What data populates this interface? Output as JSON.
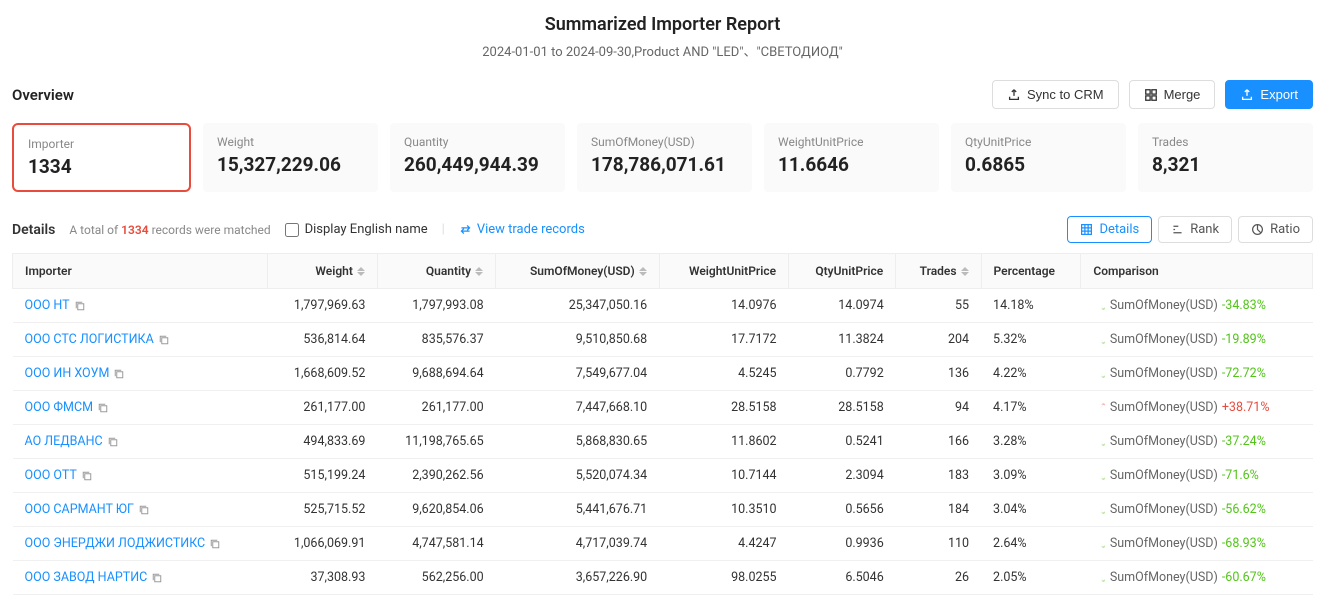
{
  "title": "Summarized Importer Report",
  "subtitle": "2024-01-01 to 2024-09-30,Product AND \"LED\"、\"СВЕТОДИОД\"",
  "overview": {
    "title": "Overview",
    "actions": {
      "sync": "Sync to CRM",
      "merge": "Merge",
      "export": "Export"
    },
    "cards": [
      {
        "label": "Importer",
        "value": "1334",
        "highlighted": true
      },
      {
        "label": "Weight",
        "value": "15,327,229.06"
      },
      {
        "label": "Quantity",
        "value": "260,449,944.39"
      },
      {
        "label": "SumOfMoney(USD)",
        "value": "178,786,071.61"
      },
      {
        "label": "WeightUnitPrice",
        "value": "11.6646"
      },
      {
        "label": "QtyUnitPrice",
        "value": "0.6865"
      },
      {
        "label": "Trades",
        "value": "8,321"
      }
    ]
  },
  "details": {
    "title": "Details",
    "match_prefix": "A total of",
    "match_count": "1334",
    "match_suffix": "records were matched",
    "checkbox_label": "Display English name",
    "view_records": "View trade records",
    "tabs": {
      "details": "Details",
      "rank": "Rank",
      "ratio": "Ratio"
    },
    "columns": [
      "Importer",
      "Weight",
      "Quantity",
      "SumOfMoney(USD)",
      "WeightUnitPrice",
      "QtyUnitPrice",
      "Trades",
      "Percentage",
      "Comparison"
    ],
    "comp_label": "SumOfMoney(USD)",
    "rows": [
      {
        "importer": "ООО НТ",
        "weight": "1,797,969.63",
        "quantity": "1,797,993.08",
        "sum": "25,347,050.16",
        "wup": "14.0976",
        "qup": "14.0974",
        "trades": "55",
        "pct": "14.18%",
        "comp": "-34.83%",
        "dir": "down"
      },
      {
        "importer": "ООО СТС ЛОГИСТИКА",
        "weight": "536,814.64",
        "quantity": "835,576.37",
        "sum": "9,510,850.68",
        "wup": "17.7172",
        "qup": "11.3824",
        "trades": "204",
        "pct": "5.32%",
        "comp": "-19.89%",
        "dir": "down"
      },
      {
        "importer": "ООО ИН ХОУМ",
        "weight": "1,668,609.52",
        "quantity": "9,688,694.64",
        "sum": "7,549,677.04",
        "wup": "4.5245",
        "qup": "0.7792",
        "trades": "136",
        "pct": "4.22%",
        "comp": "-72.72%",
        "dir": "down"
      },
      {
        "importer": "ООО ФМСМ",
        "weight": "261,177.00",
        "quantity": "261,177.00",
        "sum": "7,447,668.10",
        "wup": "28.5158",
        "qup": "28.5158",
        "trades": "94",
        "pct": "4.17%",
        "comp": "+38.71%",
        "dir": "up"
      },
      {
        "importer": "АО ЛЕДВАНС",
        "weight": "494,833.69",
        "quantity": "11,198,765.65",
        "sum": "5,868,830.65",
        "wup": "11.8602",
        "qup": "0.5241",
        "trades": "166",
        "pct": "3.28%",
        "comp": "-37.24%",
        "dir": "down"
      },
      {
        "importer": "ООО ОТТ",
        "weight": "515,199.24",
        "quantity": "2,390,262.56",
        "sum": "5,520,074.34",
        "wup": "10.7144",
        "qup": "2.3094",
        "trades": "183",
        "pct": "3.09%",
        "comp": "-71.6%",
        "dir": "down"
      },
      {
        "importer": "ООО САРМАНТ ЮГ",
        "weight": "525,715.52",
        "quantity": "9,620,854.06",
        "sum": "5,441,676.71",
        "wup": "10.3510",
        "qup": "0.5656",
        "trades": "184",
        "pct": "3.04%",
        "comp": "-56.62%",
        "dir": "down"
      },
      {
        "importer": "ООО ЭНЕРДЖИ ЛОДЖИСТИКС",
        "weight": "1,066,069.91",
        "quantity": "4,747,581.14",
        "sum": "4,717,039.74",
        "wup": "4.4247",
        "qup": "0.9936",
        "trades": "110",
        "pct": "2.64%",
        "comp": "-68.93%",
        "dir": "down"
      },
      {
        "importer": "ООО ЗАВОД НАРТИС",
        "weight": "37,308.93",
        "quantity": "562,256.00",
        "sum": "3,657,226.90",
        "wup": "98.0255",
        "qup": "6.5046",
        "trades": "26",
        "pct": "2.05%",
        "comp": "-60.67%",
        "dir": "down"
      }
    ]
  }
}
